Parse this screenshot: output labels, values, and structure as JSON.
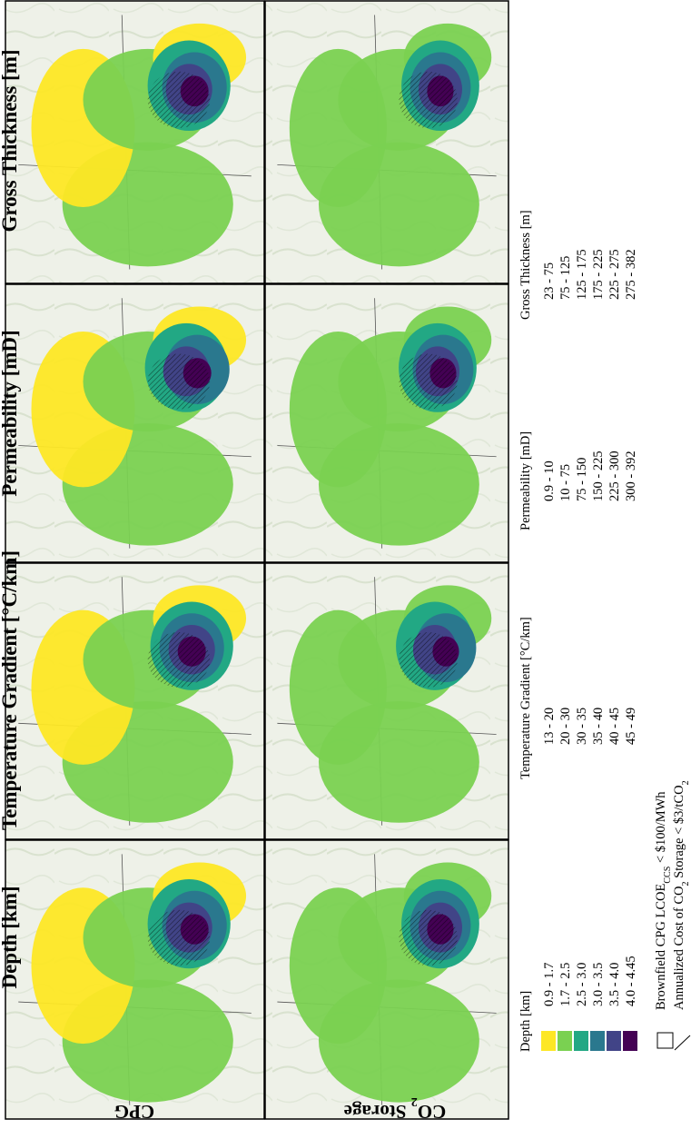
{
  "figure": {
    "columns": [
      {
        "id": "depth",
        "title": "Depth [km]"
      },
      {
        "id": "temperature_gradient",
        "title": "Temperature Gradient [°C/km]"
      },
      {
        "id": "permeability",
        "title": "Permeability [mD]"
      },
      {
        "id": "gross_thickness",
        "title": "Gross Thickness [m]"
      }
    ],
    "rows": [
      {
        "id": "cpg",
        "label": "CPG"
      },
      {
        "id": "co2",
        "label_prefix": "CO",
        "label_sub": "2",
        "label_suffix": " Storage"
      }
    ]
  },
  "legend": {
    "colors": [
      "#fde725",
      "#7ad151",
      "#22a884",
      "#2a788e",
      "#414487",
      "#440154"
    ],
    "columns": [
      {
        "title": "Depth [km]",
        "ranges": [
          "0.9 - 1.7",
          "1.7 - 2.5",
          "2.5 - 3.0",
          "3.0 - 3.5",
          "3.5 - 4.0",
          "4.0 - 4.45"
        ]
      },
      {
        "title": "Temperature Gradient [°C/km]",
        "ranges": [
          "13 - 20",
          "20 - 30",
          "30 - 35",
          "35 - 40",
          "40 - 45",
          "45 - 49"
        ]
      },
      {
        "title": "Permeability [mD]",
        "ranges": [
          "0.9 - 10",
          "10 - 75",
          "75 - 150",
          "150 - 225",
          "225 - 300",
          "300 - 392"
        ]
      },
      {
        "title": "Gross Thickness [m]",
        "ranges": [
          "23 - 75",
          "75 - 125",
          "125 - 175",
          "175 - 225",
          "225 - 275",
          "275 - 382"
        ]
      }
    ],
    "box_note": {
      "prefix": "Brownfield CPG LCOE",
      "sub": "CCS",
      "suffix": " < $100/MWh"
    },
    "hatch_note": {
      "prefix": "Annualized Cost of CO",
      "sub1": "2",
      "middle": " Storage < $3/tCO",
      "sub2": "2"
    }
  }
}
